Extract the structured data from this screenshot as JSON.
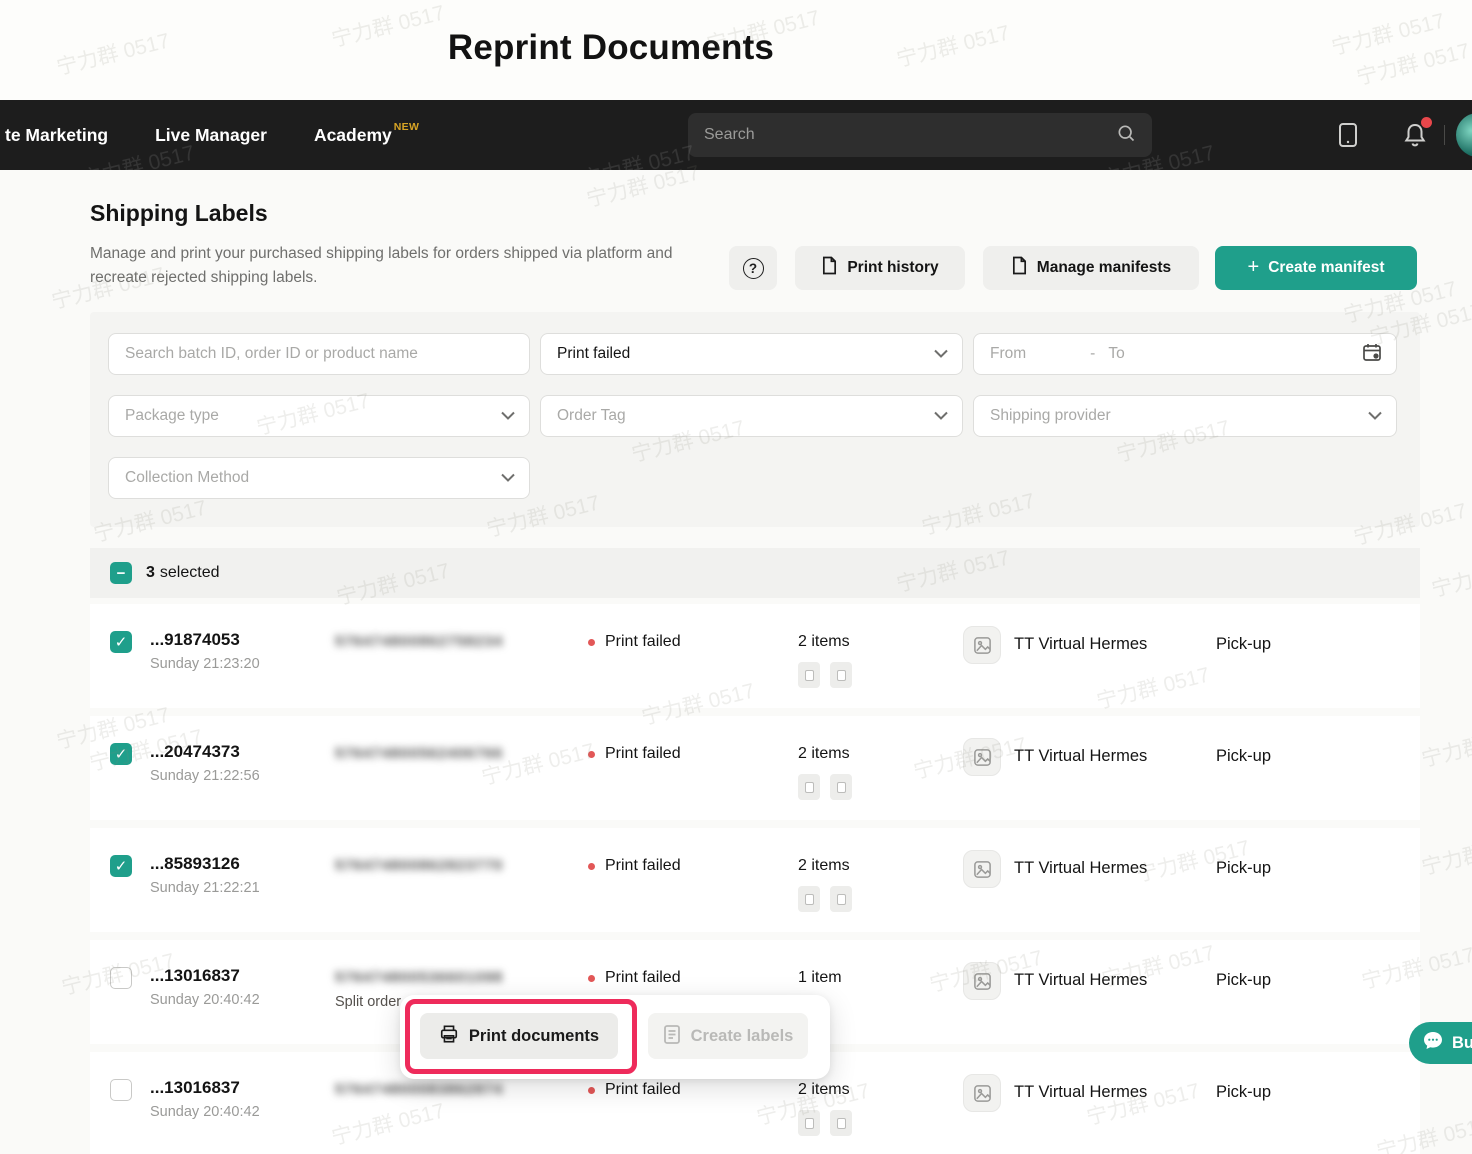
{
  "window": {
    "title": "Reprint Documents"
  },
  "navbar": {
    "items": [
      {
        "label": "te Marketing",
        "badge": ""
      },
      {
        "label": "Live Manager",
        "badge": ""
      },
      {
        "label": "Academy",
        "badge": "NEW"
      }
    ],
    "search_placeholder": "Search"
  },
  "page": {
    "title": "Shipping Labels",
    "description": "Manage and print your purchased shipping labels for orders shipped via platform and recreate rejected shipping labels.",
    "actions": {
      "help": "?",
      "print_history": "Print history",
      "manage_manifests": "Manage manifests",
      "create_manifest": "Create manifest",
      "plus": "+"
    }
  },
  "filters": {
    "search_placeholder": "Search batch ID, order ID or product name",
    "status_value": "Print failed",
    "date_from": "From",
    "date_separator": "-",
    "date_to": "To",
    "package_type_placeholder": "Package type",
    "order_tag_placeholder": "Order Tag",
    "shipping_provider_placeholder": "Shipping provider",
    "collection_method_placeholder": "Collection Method"
  },
  "selection": {
    "count": "3",
    "label": "selected"
  },
  "orders": [
    {
      "checked": true,
      "id": "...91874053",
      "time": "Sunday 21:23:20",
      "masked": "576474800862758234",
      "note": "",
      "status": "Print failed",
      "items": "2 items",
      "thumb_count": 2,
      "provider": "TT Virtual Hermes",
      "collection": "Pick-up"
    },
    {
      "checked": true,
      "id": "...20474373",
      "time": "Sunday 21:22:56",
      "masked": "576474800562406766",
      "note": "",
      "status": "Print failed",
      "items": "2 items",
      "thumb_count": 2,
      "provider": "TT Virtual Hermes",
      "collection": "Pick-up"
    },
    {
      "checked": true,
      "id": "...85893126",
      "time": "Sunday 21:22:21",
      "masked": "576474800862823770",
      "note": "",
      "status": "Print failed",
      "items": "2 items",
      "thumb_count": 2,
      "provider": "TT Virtual Hermes",
      "collection": "Pick-up"
    },
    {
      "checked": false,
      "id": "...13016837",
      "time": "Sunday 20:40:42",
      "masked": "576474800536601098",
      "note": "Split order",
      "status": "Print failed",
      "items": "1 item",
      "thumb_count": 1,
      "provider": "TT Virtual Hermes",
      "collection": "Pick-up"
    },
    {
      "checked": false,
      "id": "...13016837",
      "time": "Sunday 20:40:42",
      "masked": "576474800083862874",
      "note": "",
      "status": "Print failed",
      "items": "2 items",
      "thumb_count": 2,
      "provider": "TT Virtual Hermes",
      "collection": "Pick-up"
    }
  ],
  "popup": {
    "print_documents": "Print documents",
    "create_labels": "Create labels"
  },
  "chat_button": {
    "label": "Bu"
  },
  "watermark": "宁力群 0517",
  "icons": {
    "check": "✓",
    "minus": "−"
  },
  "colors": {
    "accent": "#1F9F8B",
    "highlight": "#EE2B5B",
    "status_red": "#E25757",
    "badge_new": "#D8A525",
    "navbar": "#1D1D1D"
  }
}
